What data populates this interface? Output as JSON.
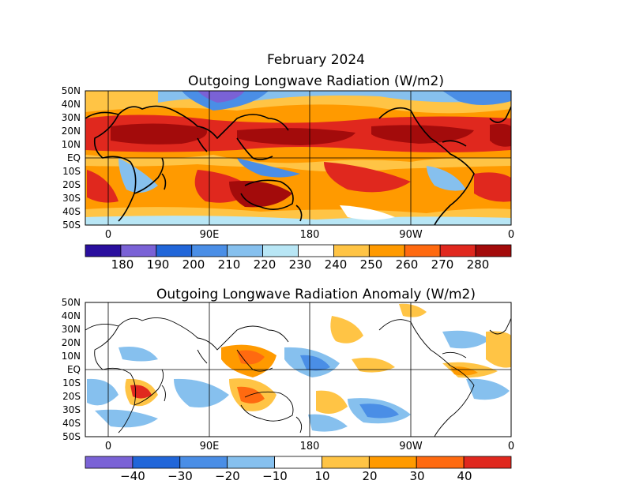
{
  "header": {
    "title": "February 2024"
  },
  "maps": [
    {
      "id": "olr",
      "title": "Outgoing Longwave Radiation (W/m2)",
      "lat_labels": [
        "50N",
        "40N",
        "30N",
        "20N",
        "10N",
        "EQ",
        "10S",
        "20S",
        "30S",
        "40S",
        "50S"
      ],
      "lon_labels": [
        "0",
        "90E",
        "180",
        "90W",
        "0"
      ],
      "colorbar": {
        "labels": [
          "180",
          "190",
          "200",
          "210",
          "220",
          "230",
          "240",
          "250",
          "260",
          "270",
          "280"
        ],
        "colors": [
          "#2a0f9e",
          "#7a62d6",
          "#2166d9",
          "#4a8ee6",
          "#86c0ee",
          "#b8e6f5",
          "#ffffff",
          "#ffc445",
          "#ff9a00",
          "#ff6a10",
          "#e0281e",
          "#a30b0b"
        ]
      }
    },
    {
      "id": "olr-anom",
      "title": "Outgoing Longwave Radiation Anomaly (W/m2)",
      "lat_labels": [
        "50N",
        "40N",
        "30N",
        "20N",
        "10N",
        "EQ",
        "10S",
        "20S",
        "30S",
        "40S",
        "50S"
      ],
      "lon_labels": [
        "0",
        "90E",
        "180",
        "90W",
        "0"
      ],
      "colorbar": {
        "labels": [
          "−40",
          "−30",
          "−20",
          "−10",
          "10",
          "20",
          "30",
          "40"
        ],
        "colors": [
          "#7a62d6",
          "#2166d9",
          "#4a8ee6",
          "#86c0ee",
          "#ffffff",
          "#ffc445",
          "#ff9a00",
          "#ff6a10",
          "#e0281e"
        ]
      }
    }
  ]
}
